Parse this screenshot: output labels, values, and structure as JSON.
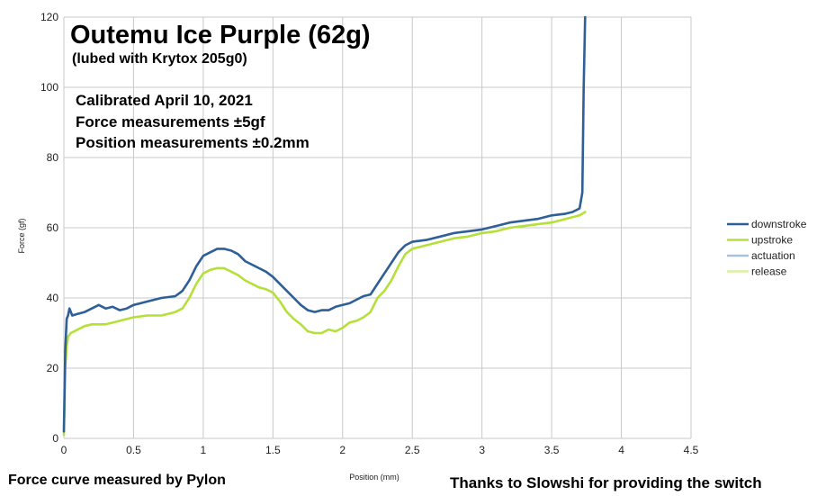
{
  "chart_data": {
    "type": "line",
    "title": "Outemu Ice Purple (62g)",
    "subtitle": "(lubed with Krytox 205g0)",
    "notes": [
      "Calibrated April 10, 2021",
      "Force measurements ±5gf",
      "Position measurements ±0.2mm"
    ],
    "xlabel": "Position (mm)",
    "ylabel": "Force (gf)",
    "xlim": [
      0,
      4.5
    ],
    "ylim": [
      0,
      120
    ],
    "xticks": [
      0,
      0.5,
      1,
      1.5,
      2,
      2.5,
      3,
      3.5,
      4,
      4.5
    ],
    "xtick_labels": [
      "0",
      "0.5",
      "1",
      "1.5",
      "2",
      "2.5",
      "3",
      "3.5",
      "4",
      "4.5"
    ],
    "yticks": [
      0,
      20,
      40,
      60,
      80,
      100,
      120
    ],
    "ytick_labels": [
      "0",
      "20",
      "40",
      "60",
      "80",
      "100",
      "120"
    ],
    "grid": true,
    "legend_position": "right",
    "series": [
      {
        "name": "downstroke",
        "color": "#2e5f96",
        "points": [
          [
            0.0,
            2
          ],
          [
            0.01,
            25
          ],
          [
            0.02,
            34
          ],
          [
            0.03,
            35
          ],
          [
            0.04,
            37
          ],
          [
            0.06,
            35
          ],
          [
            0.1,
            35.5
          ],
          [
            0.15,
            36
          ],
          [
            0.2,
            37
          ],
          [
            0.25,
            38
          ],
          [
            0.3,
            37
          ],
          [
            0.35,
            37.5
          ],
          [
            0.4,
            36.5
          ],
          [
            0.45,
            37
          ],
          [
            0.5,
            38
          ],
          [
            0.55,
            38.5
          ],
          [
            0.6,
            39
          ],
          [
            0.7,
            40
          ],
          [
            0.8,
            40.5
          ],
          [
            0.85,
            42
          ],
          [
            0.9,
            45
          ],
          [
            0.95,
            49
          ],
          [
            1.0,
            52
          ],
          [
            1.05,
            53
          ],
          [
            1.1,
            54
          ],
          [
            1.15,
            54
          ],
          [
            1.2,
            53.5
          ],
          [
            1.25,
            52.5
          ],
          [
            1.3,
            50.5
          ],
          [
            1.35,
            49.5
          ],
          [
            1.4,
            48.5
          ],
          [
            1.45,
            47.5
          ],
          [
            1.5,
            46
          ],
          [
            1.55,
            44
          ],
          [
            1.6,
            42
          ],
          [
            1.65,
            40
          ],
          [
            1.7,
            38
          ],
          [
            1.75,
            36.5
          ],
          [
            1.8,
            36
          ],
          [
            1.85,
            36.5
          ],
          [
            1.9,
            36.5
          ],
          [
            1.95,
            37.5
          ],
          [
            2.0,
            38
          ],
          [
            2.05,
            38.5
          ],
          [
            2.1,
            39.5
          ],
          [
            2.15,
            40.5
          ],
          [
            2.2,
            41
          ],
          [
            2.25,
            44
          ],
          [
            2.3,
            47
          ],
          [
            2.35,
            50
          ],
          [
            2.4,
            53
          ],
          [
            2.45,
            55
          ],
          [
            2.5,
            56
          ],
          [
            2.6,
            56.5
          ],
          [
            2.7,
            57.5
          ],
          [
            2.8,
            58.5
          ],
          [
            2.9,
            59
          ],
          [
            3.0,
            59.5
          ],
          [
            3.1,
            60.5
          ],
          [
            3.2,
            61.5
          ],
          [
            3.3,
            62
          ],
          [
            3.4,
            62.5
          ],
          [
            3.5,
            63.5
          ],
          [
            3.6,
            64
          ],
          [
            3.65,
            64.5
          ],
          [
            3.7,
            65.5
          ],
          [
            3.72,
            70
          ],
          [
            3.73,
            100
          ],
          [
            3.74,
            120
          ]
        ]
      },
      {
        "name": "upstroke",
        "color": "#b5e03a",
        "points": [
          [
            0.0,
            1
          ],
          [
            0.01,
            20
          ],
          [
            0.02,
            26
          ],
          [
            0.03,
            29
          ],
          [
            0.05,
            30
          ],
          [
            0.1,
            31
          ],
          [
            0.15,
            32
          ],
          [
            0.2,
            32.5
          ],
          [
            0.3,
            32.5
          ],
          [
            0.4,
            33.5
          ],
          [
            0.5,
            34.5
          ],
          [
            0.6,
            35
          ],
          [
            0.7,
            35
          ],
          [
            0.75,
            35.5
          ],
          [
            0.8,
            36
          ],
          [
            0.85,
            37
          ],
          [
            0.9,
            40
          ],
          [
            0.95,
            44
          ],
          [
            1.0,
            47
          ],
          [
            1.05,
            48
          ],
          [
            1.1,
            48.5
          ],
          [
            1.15,
            48.5
          ],
          [
            1.2,
            47.5
          ],
          [
            1.25,
            46.5
          ],
          [
            1.3,
            45
          ],
          [
            1.35,
            44
          ],
          [
            1.4,
            43
          ],
          [
            1.45,
            42.5
          ],
          [
            1.5,
            41.5
          ],
          [
            1.55,
            39
          ],
          [
            1.6,
            36
          ],
          [
            1.65,
            34
          ],
          [
            1.7,
            32.5
          ],
          [
            1.75,
            30.5
          ],
          [
            1.8,
            30
          ],
          [
            1.85,
            30
          ],
          [
            1.9,
            31
          ],
          [
            1.95,
            30.5
          ],
          [
            2.0,
            31.5
          ],
          [
            2.05,
            33
          ],
          [
            2.1,
            33.5
          ],
          [
            2.15,
            34.5
          ],
          [
            2.2,
            36
          ],
          [
            2.25,
            40
          ],
          [
            2.3,
            42
          ],
          [
            2.35,
            45
          ],
          [
            2.4,
            49
          ],
          [
            2.45,
            52.5
          ],
          [
            2.5,
            54
          ],
          [
            2.6,
            55
          ],
          [
            2.7,
            56
          ],
          [
            2.8,
            57
          ],
          [
            2.9,
            57.5
          ],
          [
            3.0,
            58.5
          ],
          [
            3.1,
            59
          ],
          [
            3.2,
            60
          ],
          [
            3.3,
            60.5
          ],
          [
            3.4,
            61
          ],
          [
            3.5,
            61.5
          ],
          [
            3.6,
            62.5
          ],
          [
            3.7,
            63.5
          ],
          [
            3.74,
            64.5
          ]
        ]
      },
      {
        "name": "actuation",
        "color": "#a9c2db",
        "points": []
      },
      {
        "name": "release",
        "color": "#dcf0a0",
        "points": []
      }
    ],
    "footer_left": "Force curve measured by Pylon",
    "footer_right": "Thanks to Slowshi for providing the switch"
  }
}
